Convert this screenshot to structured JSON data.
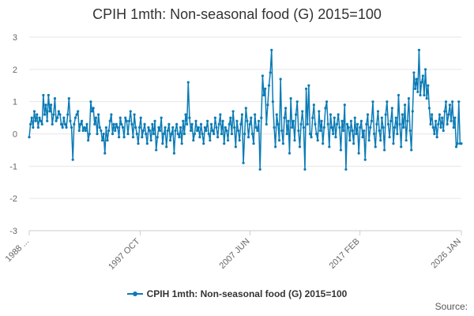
{
  "chart_data": {
    "type": "line",
    "title": "CPIH 1mth: Non-seasonal food (G) 2015=100",
    "xlabel": "",
    "ylabel": "",
    "ylim": [
      -3,
      3
    ],
    "yticks": [
      "3",
      "2",
      "1",
      "0",
      "-1",
      "-2",
      "-3"
    ],
    "xticks": [
      "1988 ...",
      "1997 OCT",
      "2007 JUN",
      "2017 FEB",
      "2026 JAN"
    ],
    "xrange": [
      "1988-01",
      "2026-01"
    ],
    "grid": true,
    "legend_position": "bottom",
    "series": [
      {
        "name": "CPIH 1mth: Non-seasonal food (G) 2015=100",
        "color": "#0b7bb6",
        "x_start": "1988-01",
        "values": [
          -0.1,
          0.3,
          0.5,
          0.2,
          0.7,
          0.4,
          0.6,
          0.2,
          0.5,
          0.4,
          0.3,
          1.2,
          0.6,
          0.9,
          0.4,
          1.2,
          0.7,
          0.9,
          0.3,
          0.6,
          1.1,
          0.4,
          0.5,
          0.7,
          0.6,
          0.3,
          0.2,
          0.5,
          0.3,
          0.2,
          0.6,
          1.1,
          0.4,
          0.2,
          -0.8,
          0.3,
          0.5,
          0.6,
          0.7,
          0.1,
          0.3,
          0.4,
          0.1,
          0.2,
          0.1,
          0.3,
          -0.2,
          0.0,
          1.0,
          0.7,
          0.8,
          0.3,
          0.5,
          0.0,
          0.6,
          0.2,
          0.1,
          -0.2,
          0.0,
          -0.6,
          0.2,
          -0.2,
          0.1,
          0.4,
          0.6,
          0.0,
          0.3,
          0.1,
          0.3,
          0.2,
          -0.1,
          0.5,
          0.3,
          0.2,
          -0.1,
          0.5,
          0.4,
          0.0,
          0.4,
          0.7,
          0.3,
          -0.1,
          0.6,
          0.2,
          0.0,
          -0.3,
          0.2,
          0.5,
          -0.1,
          0.1,
          0.3,
          0.0,
          -0.3,
          0.2,
          0.1,
          -0.2,
          0.3,
          0.0,
          0.4,
          -0.5,
          -0.1,
          0.2,
          0.1,
          0.5,
          -0.3,
          0.0,
          0.2,
          -0.4,
          0.1,
          0.3,
          -0.2,
          0.0,
          0.2,
          -0.6,
          0.1,
          0.3,
          0.0,
          -0.1,
          0.2,
          -0.3,
          0.4,
          0.0,
          0.6,
          0.3,
          1.6,
          0.5,
          0.1,
          0.3,
          -0.2,
          0.0,
          0.4,
          0.1,
          0.2,
          -0.1,
          0.3,
          0.0,
          -0.3,
          0.2,
          0.1,
          0.4,
          0.0,
          -0.2,
          0.3,
          0.1,
          0.0,
          0.5,
          0.2,
          -0.1,
          0.3,
          0.6,
          0.0,
          0.4,
          -0.3,
          0.2,
          0.1,
          -0.2,
          0.3,
          0.5,
          0.0,
          0.7,
          0.2,
          -0.4,
          0.4,
          0.1,
          -0.2,
          0.3,
          0.6,
          -0.9,
          0.0,
          0.8,
          0.4,
          -0.1,
          0.3,
          0.5,
          0.0,
          -0.3,
          0.6,
          0.2,
          0.1,
          0.4,
          -1.1,
          0.5,
          1.8,
          1.2,
          1.4,
          0.3,
          0.9,
          1.5,
          1.9,
          2.6,
          1.0,
          0.2,
          -0.4,
          0.6,
          0.3,
          -0.2,
          1.7,
          0.1,
          -0.3,
          0.5,
          0.8,
          0.0,
          0.4,
          -0.6,
          1.1,
          0.2,
          0.4,
          -0.2,
          0.6,
          1.0,
          0.1,
          -0.4,
          0.3,
          0.7,
          0.2,
          -1.1,
          1.4,
          0.3,
          1.5,
          0.0,
          -0.1,
          0.5,
          0.9,
          0.3,
          0.0,
          -0.2,
          0.7,
          0.1,
          0.4,
          -0.3,
          0.2,
          0.8,
          1.0,
          0.3,
          -0.4,
          0.6,
          0.2,
          0.0,
          0.5,
          -0.1,
          0.3,
          0.6,
          0.2,
          -0.5,
          0.4,
          0.1,
          0.9,
          -1.1,
          0.3,
          0.2,
          -0.2,
          0.4,
          0.1,
          -0.3,
          0.5,
          0.0,
          0.3,
          -0.6,
          0.2,
          0.4,
          -0.1,
          0.1,
          -0.8,
          0.3,
          0.6,
          -0.2,
          0.2,
          0.4,
          1.0,
          0.0,
          -0.4,
          0.3,
          0.7,
          0.1,
          -0.2,
          0.5,
          0.2,
          -0.5,
          0.6,
          1.0,
          0.3,
          -0.1,
          0.4,
          0.8,
          -0.3,
          0.2,
          0.5,
          0.0,
          1.2,
          0.3,
          -0.4,
          0.6,
          0.2,
          0.9,
          -0.2,
          0.4,
          1.1,
          0.1,
          -0.5,
          0.7,
          1.9,
          1.4,
          1.7,
          1.3,
          2.6,
          1.2,
          1.6,
          1.8,
          1.2,
          2.0,
          1.1,
          1.5,
          0.8,
          0.3,
          0.6,
          0.2,
          0.0,
          0.4,
          -0.1,
          0.3,
          0.6,
          0.2,
          0.5,
          0.1,
          0.7,
          1.0,
          0.3,
          0.6,
          0.9,
          0.4,
          1.0,
          0.2,
          0.5,
          -0.4,
          -0.3,
          1.0,
          -0.3,
          -0.3
        ]
      }
    ]
  },
  "source_label": "Source:"
}
